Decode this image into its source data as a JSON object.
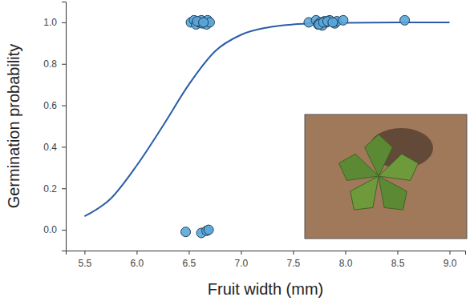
{
  "chart_data": {
    "type": "scatter",
    "x_label": "Fruit width (mm)",
    "y_label": "Germination probability",
    "xlim": [
      5.32,
      9.15
    ],
    "ylim": [
      -0.1,
      1.1
    ],
    "xticks": [
      {
        "value": 5.5,
        "label": "5.5"
      },
      {
        "value": 6,
        "label": "6.0"
      },
      {
        "value": 6.5,
        "label": "6.5"
      },
      {
        "value": 7,
        "label": "7.0"
      },
      {
        "value": 7.5,
        "label": "7.5"
      },
      {
        "value": 8,
        "label": "8.0"
      },
      {
        "value": 8.5,
        "label": "8.5"
      },
      {
        "value": 9,
        "label": "9.0"
      }
    ],
    "yticks": [
      {
        "value": 0,
        "label": "0.0"
      },
      {
        "value": 0.2,
        "label": "0.2"
      },
      {
        "value": 0.4,
        "label": "0.4"
      },
      {
        "value": 0.6,
        "label": "0.6"
      },
      {
        "value": 0.8,
        "label": "0.8"
      },
      {
        "value": 1,
        "label": "1.0"
      }
    ],
    "grid": false,
    "series": [
      {
        "type": "line",
        "color": "#2a5ca8",
        "x": [
          5.5,
          5.75,
          6.0,
          6.25,
          6.5,
          6.75,
          7.0,
          7.25,
          7.5,
          7.75,
          8.0,
          8.5,
          9.0
        ],
        "values": [
          0.065,
          0.15,
          0.31,
          0.5,
          0.7,
          0.86,
          0.94,
          0.975,
          0.99,
          0.996,
          0.998,
          1.0,
          1.0
        ]
      },
      {
        "type": "scatter",
        "color": "#5aa7d9",
        "marker": "circle",
        "x": [
          6.52,
          6.55,
          6.57,
          6.6,
          6.62,
          6.63,
          6.65,
          6.67,
          6.68,
          6.7,
          6.58,
          6.64,
          7.65,
          7.72,
          7.74,
          7.76,
          7.78,
          7.8,
          7.82,
          7.85,
          7.9,
          7.92,
          7.98,
          7.75,
          7.79,
          7.83,
          7.88,
          8.57,
          6.47,
          6.62,
          6.67,
          6.69
        ],
        "values": [
          1.0,
          1.01,
          0.99,
          1.0,
          1.01,
          0.995,
          1.0,
          0.99,
          1.01,
          1.0,
          1.005,
          1.0,
          1.0,
          1.01,
          0.99,
          1.0,
          0.985,
          1.005,
          1.0,
          1.01,
          0.995,
          1.005,
          1.01,
          0.99,
          1.0,
          1.005,
          1.0,
          1.01,
          -0.01,
          -0.015,
          -0.005,
          0.0
        ]
      }
    ]
  }
}
